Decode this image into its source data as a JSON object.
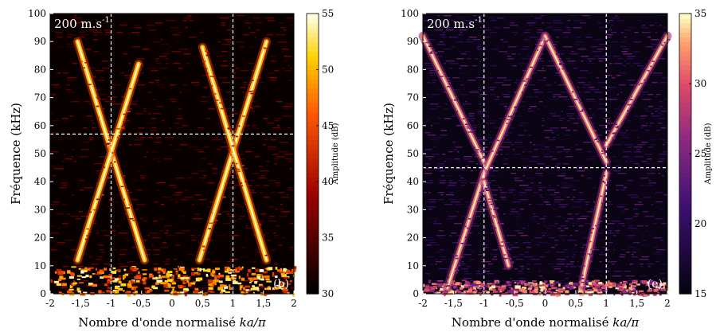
{
  "chart_data": [
    {
      "type": "heatmap",
      "panel_label": "(b)",
      "annotation": "200 m.s",
      "annotation_superscript": "-1",
      "xlabel_text": "Nombre d'onde normalisé ",
      "xlabel_math": "ka/π",
      "ylabel": "Fréquence (kHz)",
      "xlim": [
        -2,
        2
      ],
      "ylim": [
        0,
        100
      ],
      "xticks": [
        "-2",
        "-1,5",
        "-1",
        "-0,5",
        "0",
        "0,5",
        "1",
        "1,5",
        "2"
      ],
      "yticks": [
        "0",
        "10",
        "20",
        "30",
        "40",
        "50",
        "60",
        "70",
        "80",
        "90",
        "100"
      ],
      "colorbar": {
        "label": "Amplitude (dB)",
        "range": [
          30,
          55
        ],
        "ticks": [
          "30",
          "35",
          "40",
          "45",
          "50",
          "55"
        ],
        "colormap": "hot"
      },
      "guide_lines": {
        "vertical_x": [
          -1,
          1
        ],
        "horizontal_y": [
          57
        ]
      },
      "branches": [
        {
          "from": [
            -1.55,
            90
          ],
          "to": [
            -0.45,
            12
          ]
        },
        {
          "from": [
            -1.55,
            12
          ],
          "to": [
            -0.55,
            82
          ]
        },
        {
          "from": [
            0.45,
            12
          ],
          "to": [
            1.55,
            90
          ]
        },
        {
          "from": [
            0.5,
            88
          ],
          "to": [
            1.55,
            12
          ]
        }
      ],
      "low_frequency_band": [
        0,
        10
      ]
    },
    {
      "type": "heatmap",
      "panel_label": "(e)",
      "annotation": "200 m.s",
      "annotation_superscript": "-1",
      "xlabel_text": "Nombre d'onde normalisé ",
      "xlabel_math": "ka/π",
      "ylabel": "Fréquence (kHz)",
      "xlim": [
        -2,
        2
      ],
      "ylim": [
        0,
        100
      ],
      "xticks": [
        "-2",
        "-1,5",
        "-1",
        "-0,5",
        "0",
        "0,5",
        "1",
        "1,5",
        "2"
      ],
      "yticks": [
        "0",
        "10",
        "20",
        "30",
        "40",
        "50",
        "60",
        "70",
        "80",
        "90",
        "100"
      ],
      "colorbar": {
        "label": "Amplitude (dB)",
        "range": [
          15,
          35
        ],
        "ticks": [
          "15",
          "20",
          "25",
          "30",
          "35"
        ],
        "colormap": "inferno"
      },
      "guide_lines": {
        "vertical_x": [
          -1,
          1
        ],
        "horizontal_y": [
          45
        ]
      },
      "branches": [
        {
          "from": [
            -2.0,
            92
          ],
          "to": [
            -1.0,
            47
          ]
        },
        {
          "from": [
            -1.0,
            43
          ],
          "to": [
            0.0,
            92
          ]
        },
        {
          "from": [
            0.0,
            92
          ],
          "to": [
            1.0,
            47
          ]
        },
        {
          "from": [
            1.0,
            53
          ],
          "to": [
            2.0,
            92
          ]
        },
        {
          "from": [
            -1.6,
            2
          ],
          "to": [
            -1.0,
            43
          ]
        },
        {
          "from": [
            -1.0,
            40
          ],
          "to": [
            -0.6,
            10
          ]
        },
        {
          "from": [
            0.6,
            3
          ],
          "to": [
            1.0,
            43
          ]
        }
      ],
      "low_frequency_band": [
        0,
        5
      ]
    }
  ]
}
